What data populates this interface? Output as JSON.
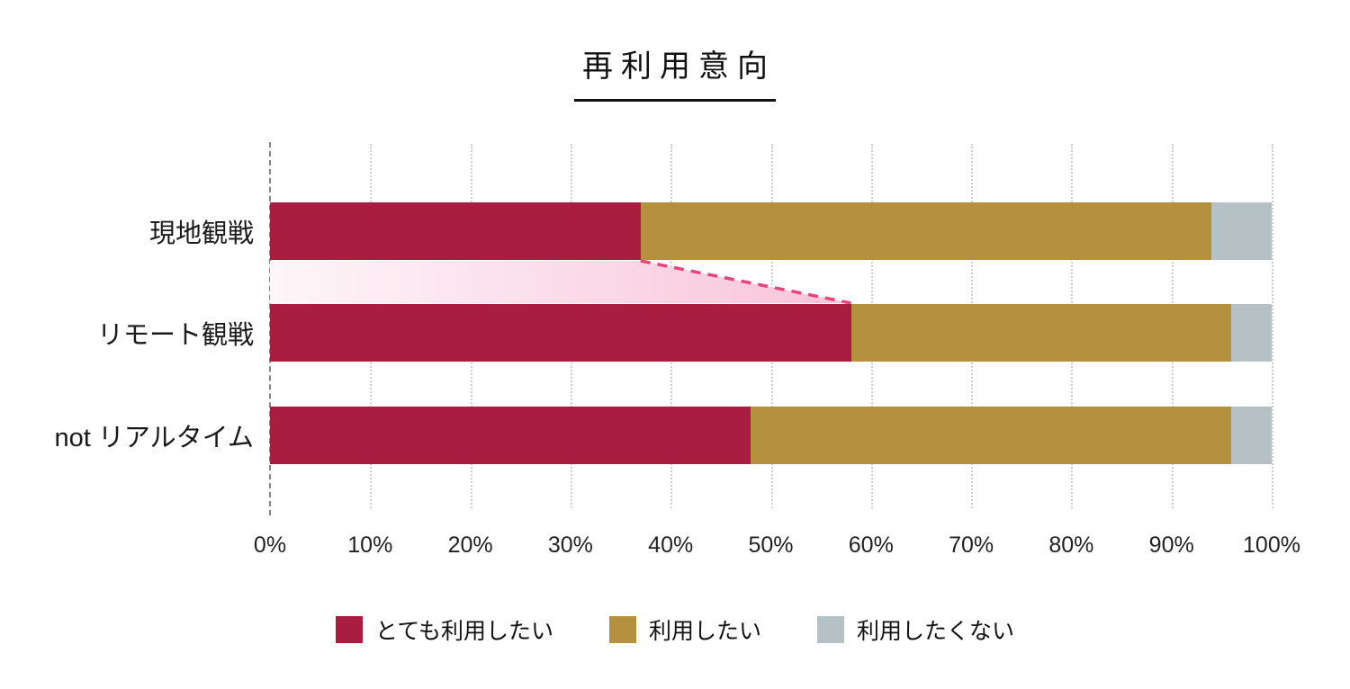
{
  "chart": {
    "title": "再利用意向"
  },
  "chart_data": {
    "type": "bar",
    "orientation": "horizontal",
    "stacked": true,
    "title": "再利用意向",
    "categories": [
      "現地観戦",
      "リモート観戦",
      "not リアルタイム"
    ],
    "series": [
      {
        "name": "とても利用したい",
        "color": "#A81D40",
        "values": [
          37,
          58,
          48
        ]
      },
      {
        "name": "利用したい",
        "color": "#B3913E",
        "values": [
          57,
          38,
          48
        ]
      },
      {
        "name": "利用したくない",
        "color": "#B5C1C5",
        "values": [
          6,
          4,
          4
        ]
      }
    ],
    "x_ticks": [
      "0%",
      "10%",
      "20%",
      "30%",
      "40%",
      "50%",
      "60%",
      "70%",
      "80%",
      "90%",
      "100%"
    ],
    "xlim": [
      0,
      100
    ],
    "grid": "vertical-dotted",
    "legend_position": "bottom",
    "annotation": {
      "type": "increase-band",
      "from_category": "現地観戦",
      "to_category": "リモート観戦",
      "from_value": 37,
      "to_value": 58,
      "band_color_start": "#FEF6F9",
      "band_color_end": "#F8C3D9",
      "dash_color": "#E8457A"
    }
  }
}
